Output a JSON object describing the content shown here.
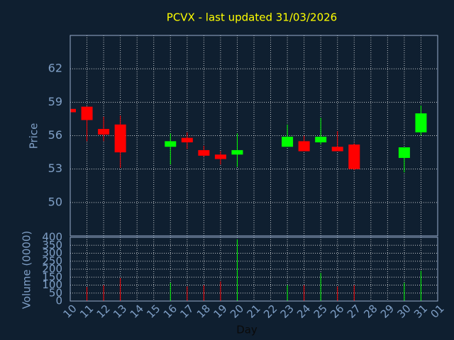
{
  "chart_data": {
    "type": "candlestick",
    "title": "PCVX - last updated 31/03/2026",
    "xlabel": "Day",
    "ylabel": "Price",
    "y2label": "Volume (0000)",
    "categories": [
      "10",
      "11",
      "12",
      "13",
      "14",
      "15",
      "16",
      "17",
      "18",
      "19",
      "20",
      "21",
      "22",
      "23",
      "24",
      "25",
      "26",
      "27",
      "28",
      "29",
      "30",
      "31",
      "01"
    ],
    "open": [
      58.4,
      58.6,
      56.6,
      57.0,
      null,
      null,
      55.0,
      55.8,
      54.7,
      54.3,
      54.3,
      null,
      null,
      55.0,
      55.5,
      55.4,
      55.0,
      55.2,
      null,
      null,
      54.0,
      56.3,
      null
    ],
    "high": [
      58.4,
      58.6,
      57.7,
      57.8,
      null,
      null,
      56.2,
      56.3,
      55.1,
      54.6,
      56.2,
      null,
      null,
      57.0,
      56.0,
      57.6,
      56.4,
      55.3,
      null,
      null,
      54.95,
      58.7,
      null
    ],
    "low": [
      58.1,
      55.5,
      55.5,
      53.1,
      null,
      null,
      53.4,
      54.8,
      54.1,
      53.4,
      53.2,
      null,
      null,
      55.0,
      54.6,
      55.2,
      54.6,
      52.9,
      null,
      null,
      52.7,
      56.0,
      null
    ],
    "close": [
      58.1,
      57.4,
      56.1,
      54.5,
      null,
      null,
      55.5,
      55.4,
      54.2,
      53.9,
      54.7,
      null,
      null,
      55.9,
      54.6,
      55.9,
      54.6,
      53.0,
      null,
      null,
      54.95,
      58.0,
      null
    ],
    "volume": [
      null,
      88,
      100,
      145,
      null,
      null,
      115,
      92,
      100,
      123,
      387,
      null,
      null,
      100,
      100,
      176,
      92,
      100,
      null,
      null,
      115,
      190,
      null
    ],
    "up_color": "#00ff00",
    "down_color": "#ff0000",
    "ylim": [
      47,
      65
    ],
    "yticks": [
      50,
      53,
      56,
      59,
      62
    ],
    "y2lim": [
      0,
      400
    ],
    "y2ticks": [
      0,
      50,
      100,
      150,
      200,
      250,
      300,
      350,
      400
    ],
    "grid": true
  }
}
